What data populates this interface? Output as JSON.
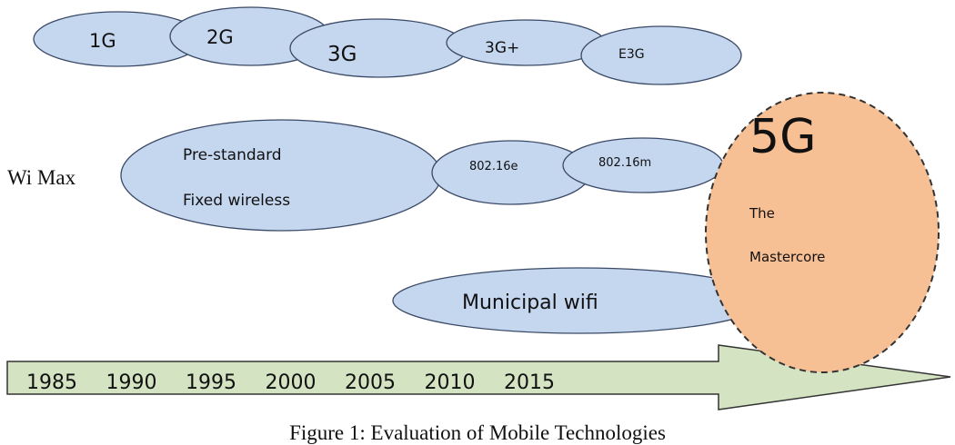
{
  "colors": {
    "bubble_fill": "#c5d6ef",
    "bubble_stroke": "#3a4a66",
    "g5_fill": "#f7bf94",
    "g5_stroke": "#333333",
    "arrow_fill": "#d4e4c3",
    "arrow_stroke": "#333333"
  },
  "generations": {
    "g1": "1G",
    "g2": "2G",
    "g3": "3G",
    "g3plus": "3G+",
    "e3g": "E3G"
  },
  "wimax": {
    "label": "Wi Max",
    "prestandard_line1": "Pre-standard",
    "prestandard_line2": "Fixed wireless",
    "std_e": "802.16e",
    "std_m": "802.16m"
  },
  "municipal": "Municipal wifi",
  "g5": {
    "title": "5G",
    "line1": "The",
    "line2": "Mastercore"
  },
  "timeline": {
    "years": [
      "1985",
      "1990",
      "1995",
      "2000",
      "2005",
      "2010",
      "2015"
    ]
  },
  "caption": "Figure 1: Evaluation of Mobile Technologies"
}
